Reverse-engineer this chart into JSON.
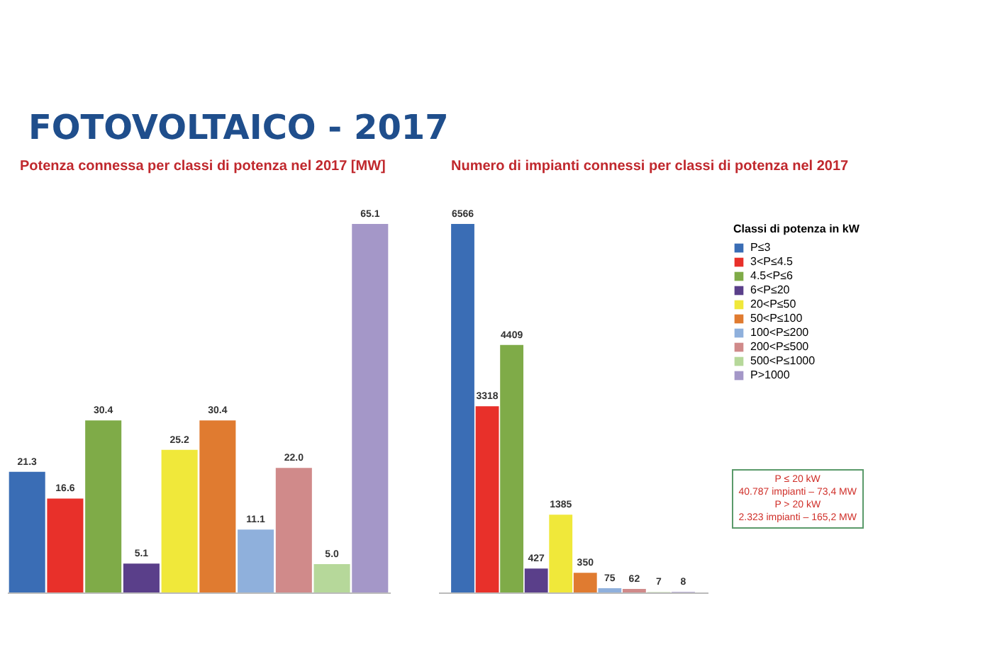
{
  "chart_data": [
    {
      "type": "bar",
      "title": "FOTOVOLTAICO - 2017",
      "subtitle": "Potenza connessa per classi di potenza nel 2017 [MW]",
      "categories": [
        null,
        null,
        null,
        null,
        null,
        null,
        null,
        null,
        null,
        null
      ],
      "values": [
        21.3,
        16.6,
        30.4,
        5.1,
        25.2,
        30.4,
        11.1,
        22.0,
        5.0,
        65.1
      ],
      "value_labels": [
        "21.3",
        "16.6",
        "30.4",
        "5.1",
        "25.2",
        "30.4",
        "11.1",
        "22.0",
        "5.0",
        "65.1"
      ],
      "colors": [
        "#3a6db5",
        "#e8302a",
        "#7fab48",
        "#5a3f8a",
        "#f0e83a",
        "#e07b30",
        "#8fb0dc",
        "#d08a8a",
        "#b6d89a",
        "#a497c8"
      ]
    },
    {
      "type": "bar",
      "title": "Numero di impianti connessi per classi di potenza nel 2017",
      "categories": [
        null
      ],
      "data_labels": true,
      "legend": "right",
      "legend_title": "Classi di potenza in kW",
      "series": [
        {
          "name": "P≤3",
          "color": "#3a6db5",
          "values": [
            6566
          ]
        },
        {
          "name": "3<P≤4.5",
          "color": "#e8302a",
          "values": [
            3318
          ]
        },
        {
          "name": "4.5<P≤6",
          "color": "#7fab48",
          "values": [
            4409
          ]
        },
        {
          "name": "6<P≤20",
          "color": "#5a3f8a",
          "values": [
            427
          ]
        },
        {
          "name": "20<P≤50",
          "color": "#f0e83a",
          "values": [
            1385
          ]
        },
        {
          "name": "50<P≤100",
          "color": "#e07b30",
          "values": [
            350
          ]
        },
        {
          "name": "100<P≤200",
          "color": "#8fb0dc",
          "values": [
            75
          ]
        },
        {
          "name": "200<P≤500",
          "color": "#d08a8a",
          "values": [
            62
          ]
        },
        {
          "name": "500<P≤1000",
          "color": "#b6d89a",
          "values": [
            7
          ]
        },
        {
          "name": "P>1000",
          "color": "#a497c8",
          "values": [
            8
          ]
        }
      ],
      "annotations": [
        "P ≤ 20 kW",
        "40.787 impianti – 73,4 MW",
        "P > 20 kW",
        "2.323 impianti – 165,2 MW"
      ]
    }
  ]
}
